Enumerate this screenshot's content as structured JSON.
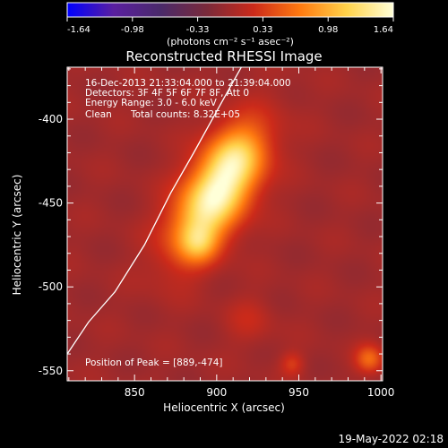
{
  "chart_data": {
    "type": "heatmap",
    "title": "Reconstructed RHESSI Image",
    "xlabel": "Heliocentric X (arcsec)",
    "ylabel": "Heliocentric Y (arcsec)",
    "xlim": [
      809,
      1001
    ],
    "ylim": [
      -556,
      -369
    ],
    "x_ticks": [
      850,
      900,
      950,
      1000
    ],
    "y_ticks": [
      -400,
      -450,
      -500,
      -550
    ],
    "colorbar": {
      "min": -1.64,
      "max": 1.64,
      "ticks": [
        "-1.64",
        "-0.98",
        "-0.33",
        "0.33",
        "0.98",
        "1.64"
      ],
      "units": "(photons cm⁻² s⁻¹ asec⁻²)",
      "colors": [
        "#0000ff",
        "#5a1fa0",
        "#4a2a6a",
        "#7a2a3a",
        "#cc2a1a",
        "#ff7a10",
        "#ffd24a",
        "#ffffd8"
      ]
    },
    "annotations": [
      "16-Dec-2013 21:33:04.000 to 21:39:04.000",
      "Detectors: 3F 4F 5F 6F 7F 8F, Att 0",
      "Energy Range: 3.0 - 6.0 keV",
      "Clean",
      "Total counts: 8.32E+05"
    ],
    "peak_label": "Position of Peak = [889,-474]",
    "peak": [
      889,
      -474
    ],
    "source_ellipse": {
      "center": [
        900,
        -444
      ],
      "semi_major": 43,
      "semi_minor": 14,
      "angle_deg": 58,
      "peak_intensity": 1.64
    },
    "secondary_sources": [
      {
        "center": [
          993,
          -543
        ],
        "sigma": 6,
        "intensity": 0.6
      },
      {
        "center": [
          946,
          -546
        ],
        "sigma": 5,
        "intensity": 0.35
      },
      {
        "center": [
          920,
          -520
        ],
        "sigma": 10,
        "intensity": 0.2
      }
    ],
    "limb_curve": [
      [
        809,
        -540
      ],
      [
        822,
        -521
      ],
      [
        838,
        -503
      ],
      [
        856,
        -475
      ],
      [
        872,
        -444
      ],
      [
        886,
        -420
      ],
      [
        903,
        -390
      ],
      [
        915,
        -369
      ]
    ]
  },
  "footer": {
    "timestamp": "19-May-2022 02:18"
  }
}
